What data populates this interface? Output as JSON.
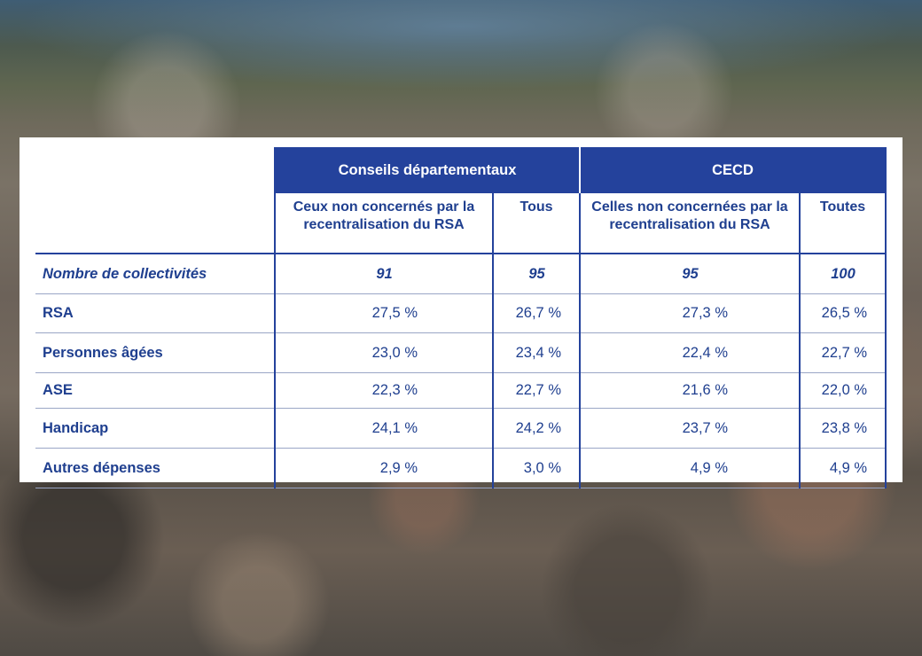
{
  "table": {
    "groups": [
      {
        "label": "Conseils départementaux"
      },
      {
        "label": "CECD"
      }
    ],
    "subheaders": [
      "Ceux non concernés par la recentralisation du RSA",
      "Tous",
      "Celles non concernées par la recentralisation du RSA",
      "Toutes"
    ],
    "rows": [
      {
        "label": "Nombre de collectivités",
        "values": [
          "91",
          "95",
          "95",
          "100"
        ]
      },
      {
        "label": "RSA",
        "values": [
          "27,5 %",
          "26,7 %",
          "27,3 %",
          "26,5 %"
        ]
      },
      {
        "label": "Personnes âgées",
        "values": [
          "23,0 %",
          "23,4 %",
          "22,4 %",
          "22,7 %"
        ]
      },
      {
        "label": "ASE",
        "values": [
          "22,3 %",
          "22,7 %",
          "21,6 %",
          "22,0 %"
        ]
      },
      {
        "label": "Handicap",
        "values": [
          "24,1 %",
          "24,2 %",
          "23,7 %",
          "23,8 %"
        ]
      },
      {
        "label": "Autres dépenses",
        "values": [
          "2,9 %",
          "3,0 %",
          "4,9 %",
          "4,9 %"
        ]
      }
    ]
  },
  "colors": {
    "header_bg": "#24429c",
    "text": "#1f3f8f",
    "card_bg": "#ffffff"
  }
}
